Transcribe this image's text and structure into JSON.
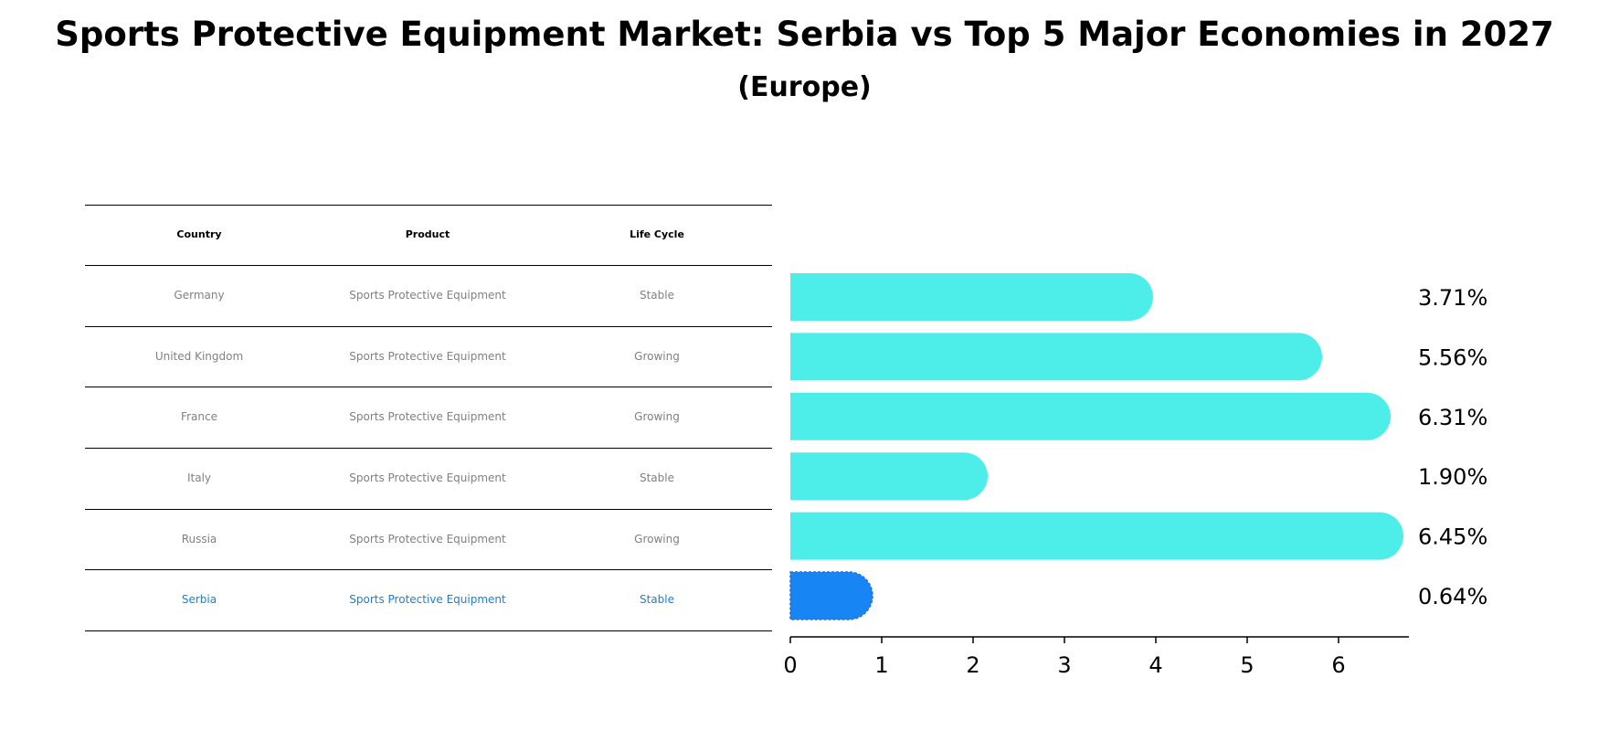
{
  "title": "Sports Protective Equipment Market: Serbia vs Top 5 Major Economies in 2027",
  "subtitle": "(Europe)",
  "table": {
    "headers": [
      "Country",
      "Product",
      "Life Cycle"
    ],
    "rows": [
      {
        "country": "Germany",
        "product": "Sports Protective Equipment",
        "life_cycle": "Stable"
      },
      {
        "country": "United Kingdom",
        "product": "Sports Protective Equipment",
        "life_cycle": "Growing"
      },
      {
        "country": "France",
        "product": "Sports Protective Equipment",
        "life_cycle": "Growing"
      },
      {
        "country": "Italy",
        "product": "Sports Protective Equipment",
        "life_cycle": "Stable"
      },
      {
        "country": "Russia",
        "product": "Sports Protective Equipment",
        "life_cycle": "Growing"
      },
      {
        "country": "Serbia",
        "product": "Sports Protective Equipment",
        "life_cycle": "Stable"
      }
    ],
    "highlight_row": "Serbia",
    "highlight_color": "#1a7fd4",
    "text_color": "#808080"
  },
  "chart_data": {
    "type": "bar",
    "orientation": "horizontal",
    "categories": [
      "Germany",
      "United Kingdom",
      "France",
      "Italy",
      "Russia",
      "Serbia"
    ],
    "values": [
      3.71,
      5.56,
      6.31,
      1.9,
      6.45,
      0.64
    ],
    "data_labels": [
      "3.71%",
      "5.56%",
      "6.31%",
      "1.90%",
      "6.45%",
      "0.64%"
    ],
    "xlim": [
      0,
      6.77
    ],
    "xticks": [
      0,
      1,
      2,
      3,
      4,
      5,
      6
    ],
    "grid": false,
    "colors": {
      "default": "#4deeea",
      "highlight": "#1785f4"
    },
    "highlight_category": "Serbia"
  }
}
